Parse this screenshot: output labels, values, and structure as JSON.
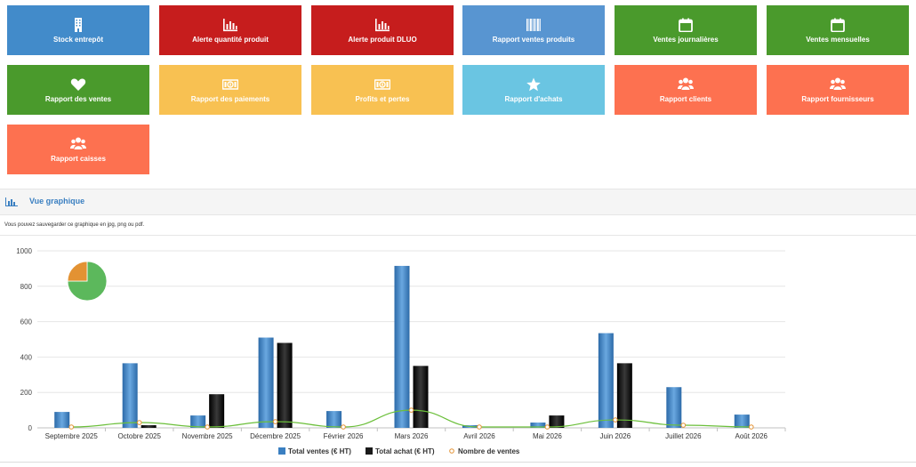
{
  "tiles": [
    {
      "label": "Stock entrepôt",
      "color": "#428bca",
      "icon": "building-icon"
    },
    {
      "label": "Alerte quantité produit",
      "color": "#c61d1d",
      "icon": "bar-chart-icon"
    },
    {
      "label": "Alerte produit DLUO",
      "color": "#c61d1d",
      "icon": "bar-chart-icon"
    },
    {
      "label": "Rapport ventes produits",
      "color": "#5895d1",
      "icon": "barcode-icon"
    },
    {
      "label": "Ventes journalières",
      "color": "#4a9a2c",
      "icon": "calendar-icon"
    },
    {
      "label": "Ventes mensuelles",
      "color": "#4a9a2c",
      "icon": "calendar-icon"
    },
    {
      "label": "Rapport des ventes",
      "color": "#4a9a2c",
      "icon": "heart-icon"
    },
    {
      "label": "Rapport des paiements",
      "color": "#f8c152",
      "icon": "money-icon"
    },
    {
      "label": "Profits et pertes",
      "color": "#f8c152",
      "icon": "money-icon"
    },
    {
      "label": "Rapport d'achats",
      "color": "#6ac5e2",
      "icon": "star-icon"
    },
    {
      "label": "Rapport clients",
      "color": "#fd7150",
      "icon": "users-icon"
    },
    {
      "label": "Rapport fournisseurs",
      "color": "#fd7150",
      "icon": "users-icon"
    },
    {
      "label": "Rapport caisses",
      "color": "#fd7150",
      "icon": "users-icon"
    }
  ],
  "section": {
    "title": "Vue graphique",
    "icon": "bar-chart-icon"
  },
  "note": "Vous pouvez sauvegarder ce graphique en jpg, png ou pdf.",
  "chart_data": {
    "type": "bar",
    "categories": [
      "Septembre 2025",
      "Octobre 2025",
      "Novembre 2025",
      "Décembre 2025",
      "Février 2026",
      "Mars 2026",
      "Avril 2026",
      "Mai 2026",
      "Juin 2026",
      "Juillet 2026",
      "Août 2026"
    ],
    "series": [
      {
        "name": "Total ventes (€ HT)",
        "type": "bar",
        "color": "#3a7fc1",
        "values": [
          90,
          365,
          70,
          510,
          95,
          915,
          15,
          30,
          535,
          230,
          75
        ]
      },
      {
        "name": "Total achat (€ HT)",
        "type": "bar",
        "color": "#1a1a1a",
        "values": [
          0,
          15,
          190,
          480,
          0,
          350,
          0,
          70,
          365,
          0,
          0
        ]
      },
      {
        "name": "Nombre de ventes",
        "type": "line",
        "color": "#6bbf3a",
        "marker_color": "#e39233",
        "values": [
          5,
          30,
          5,
          35,
          5,
          100,
          5,
          5,
          45,
          15,
          5
        ]
      }
    ],
    "yticks": [
      0,
      200,
      400,
      600,
      800,
      1000
    ],
    "ylim": [
      0,
      1000
    ],
    "grid": true,
    "legend": "bottom",
    "pie": {
      "values": [
        75,
        25
      ],
      "colors": [
        "#5cb85c",
        "#e39233"
      ]
    }
  }
}
